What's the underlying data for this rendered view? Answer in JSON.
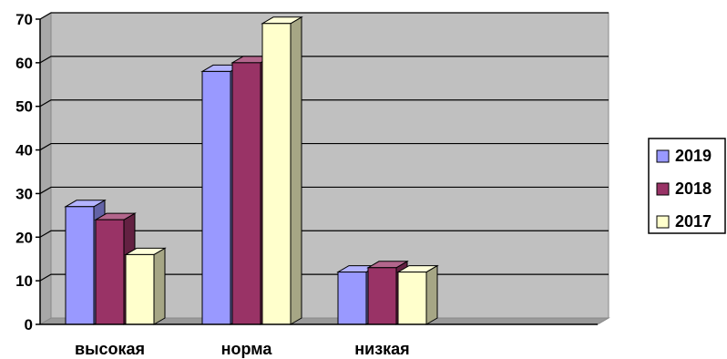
{
  "chart_data": {
    "type": "bar",
    "categories": [
      "высокая",
      "норма",
      "низкая"
    ],
    "series": [
      {
        "name": "2019",
        "values": [
          27,
          58,
          12
        ]
      },
      {
        "name": "2018",
        "values": [
          24,
          60,
          13
        ]
      },
      {
        "name": "2017",
        "values": [
          16,
          69,
          12
        ]
      }
    ],
    "ylim": [
      0,
      70
    ],
    "yticks": [
      "0",
      "10",
      "20",
      "30",
      "40",
      "50",
      "60",
      "70"
    ],
    "grid": true,
    "legend_position": "right",
    "colors": {
      "2019": "#9999ff",
      "2018": "#993366",
      "2017": "#ffffcc",
      "plot_background": "#c0c0c0"
    }
  }
}
